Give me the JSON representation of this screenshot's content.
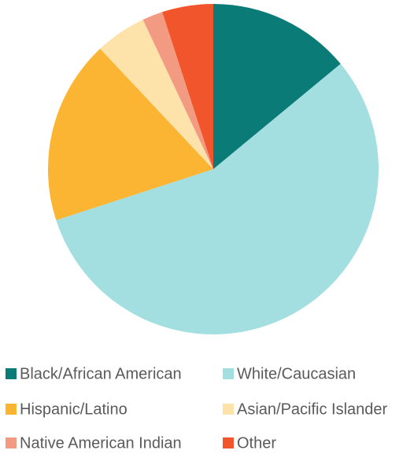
{
  "chart_data": {
    "type": "pie",
    "categories": [
      "Black/African American",
      "White/Caucasian",
      "Hispanic/Latino",
      "Asian/Pacific Islander",
      "Native American Indian",
      "Other"
    ],
    "values": [
      14,
      56,
      18,
      5,
      2,
      5
    ],
    "colors": [
      "#0b7b78",
      "#a3dfe0",
      "#fbb532",
      "#fde2aa",
      "#f39b82",
      "#f1552b"
    ]
  }
}
